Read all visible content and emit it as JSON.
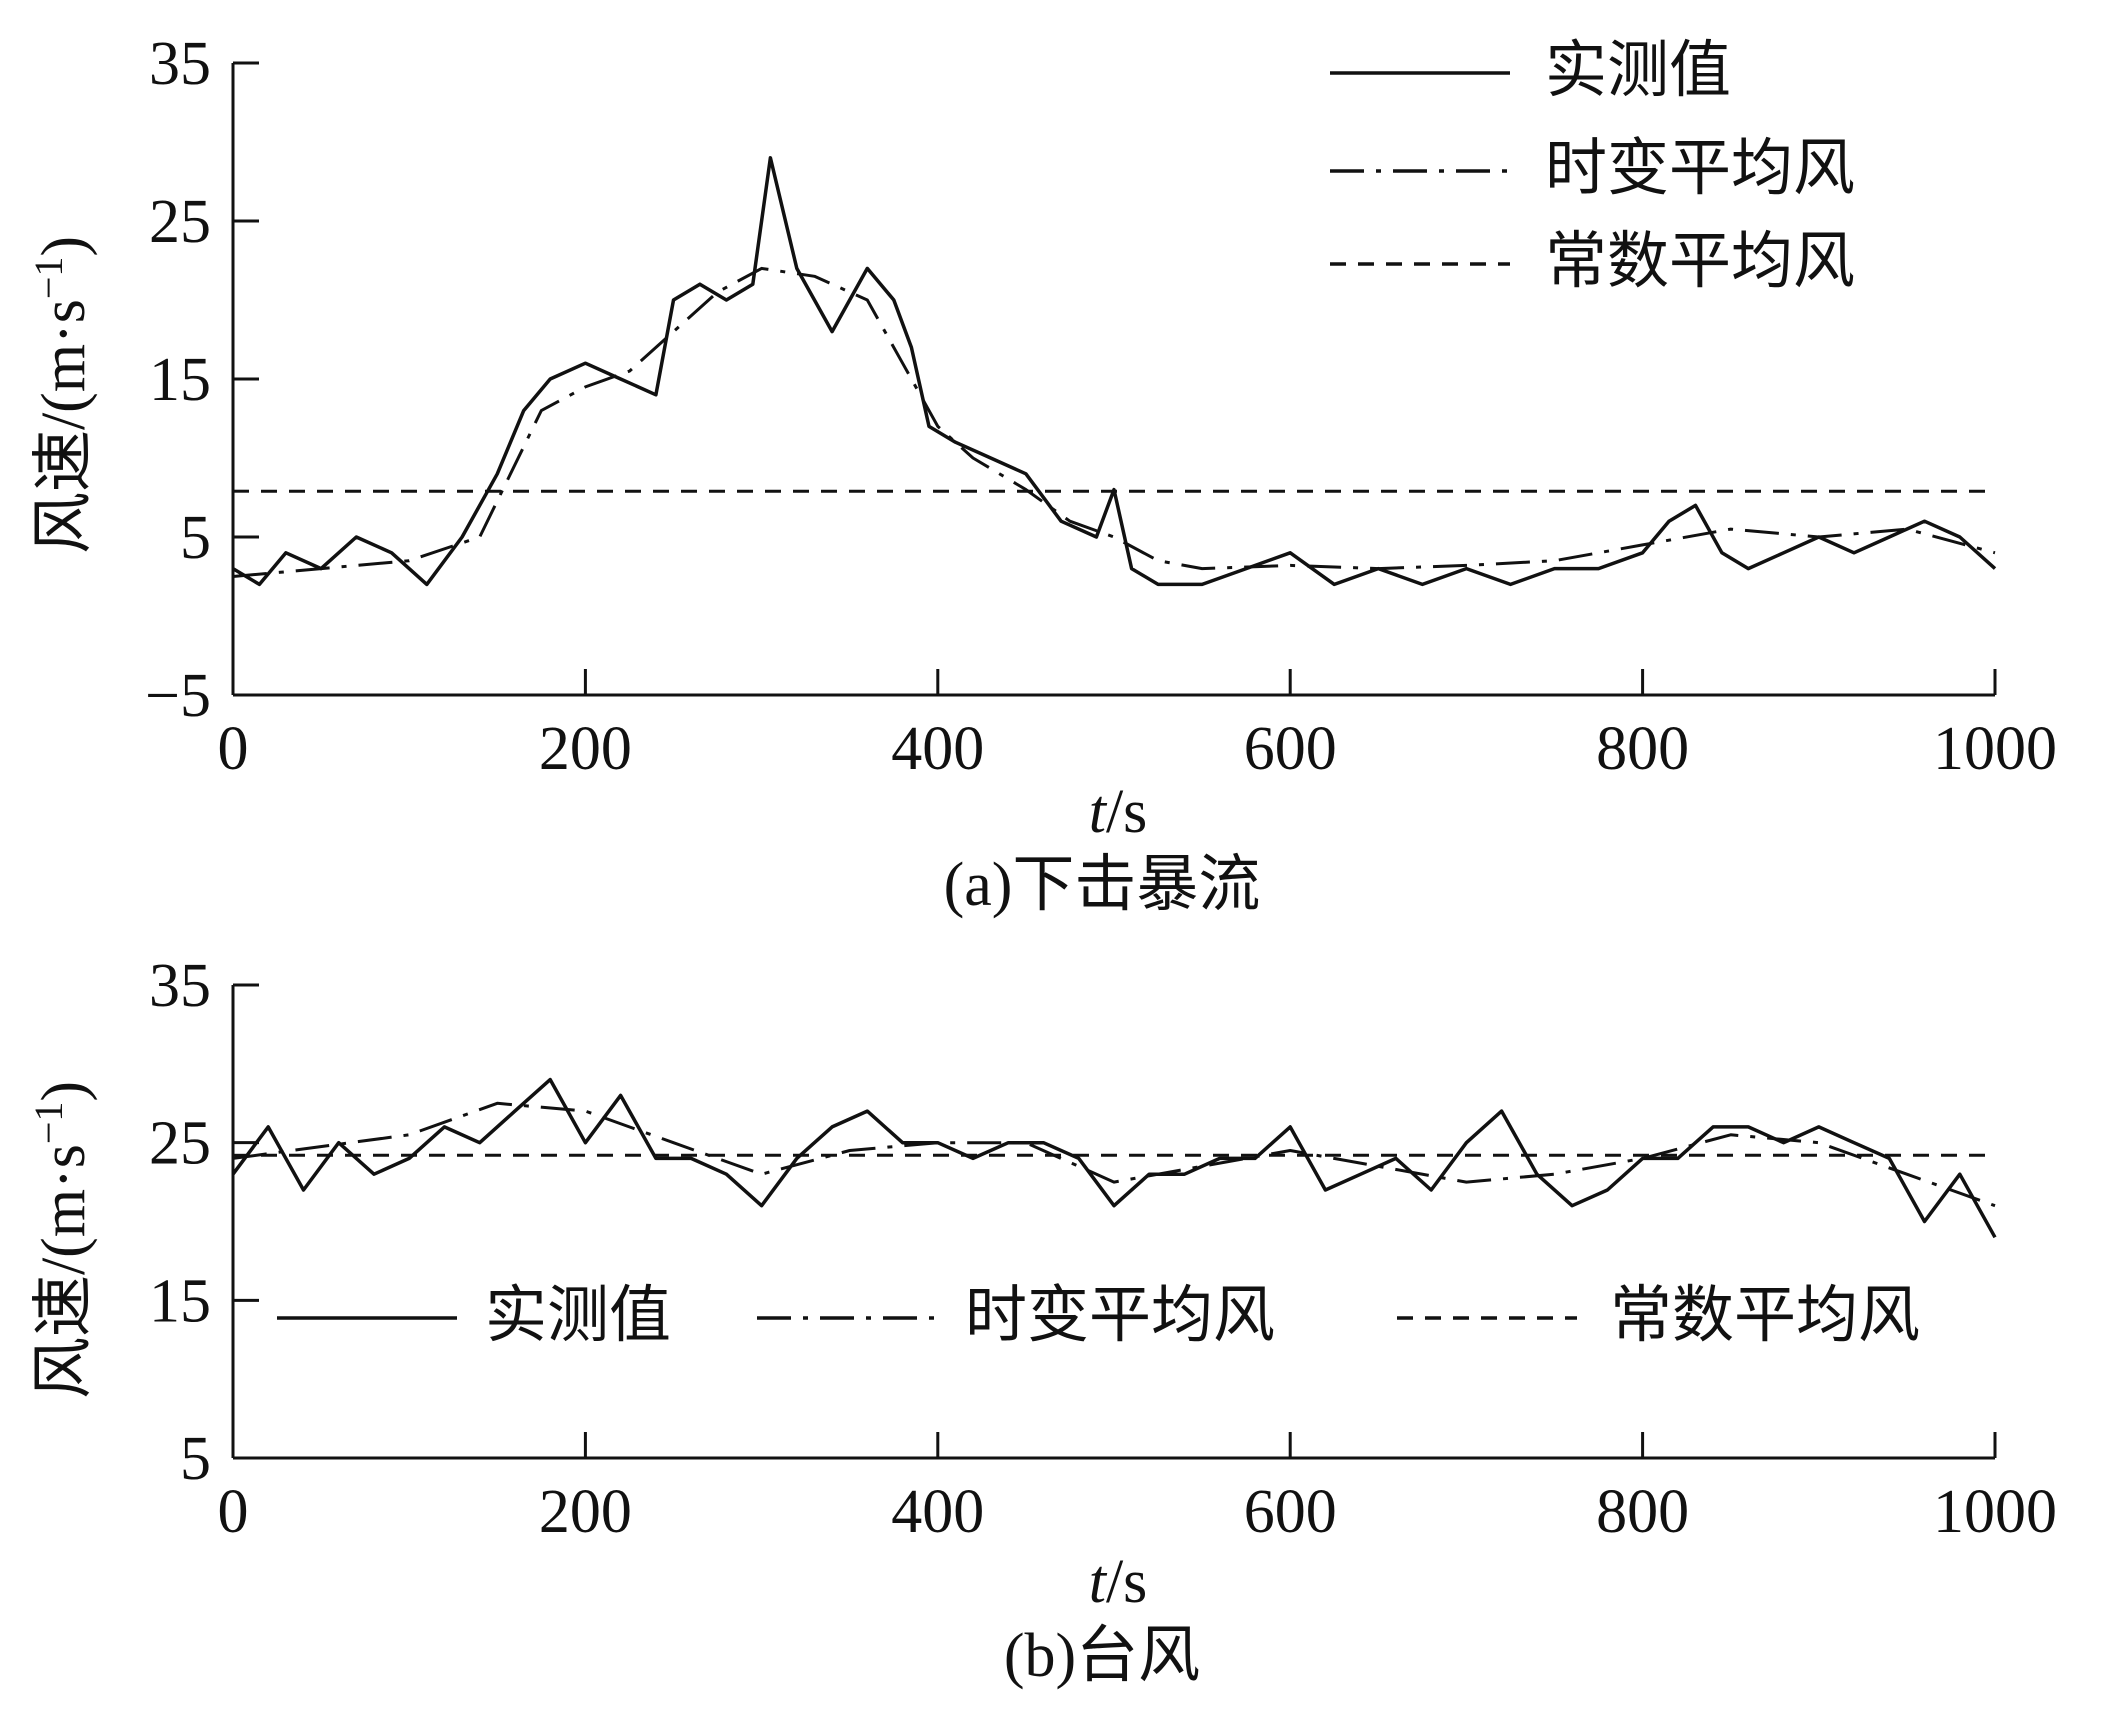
{
  "chart_data": [
    {
      "id": "a",
      "type": "line",
      "caption": "(a)下击暴流",
      "xlabel_italic": "t",
      "xlabel_unit": "/s",
      "ylabel": "风速/(m·s",
      "ylabel_sup": "−1",
      "ylabel_close": ")",
      "xlim": [
        0,
        1000
      ],
      "ylim": [
        -5,
        35
      ],
      "xticks": [
        0,
        200,
        400,
        600,
        800,
        1000
      ],
      "yticks": [
        -5,
        5,
        15,
        25,
        35
      ],
      "ytick_labels": [
        "−5",
        "5",
        "15",
        "25",
        "35"
      ],
      "legend_position": "top-right",
      "series": [
        {
          "name": "实测值",
          "style": "solid",
          "color": "#111111",
          "x": [
            0,
            15,
            30,
            50,
            70,
            90,
            110,
            130,
            150,
            165,
            180,
            200,
            220,
            240,
            250,
            265,
            280,
            295,
            305,
            320,
            340,
            360,
            375,
            385,
            395,
            410,
            430,
            450,
            470,
            490,
            500,
            510,
            525,
            550,
            575,
            600,
            625,
            650,
            675,
            700,
            725,
            750,
            775,
            800,
            815,
            830,
            845,
            860,
            880,
            900,
            920,
            940,
            960,
            980,
            1000
          ],
          "y": [
            3,
            2,
            4,
            3,
            5,
            4,
            2,
            5,
            9,
            13,
            15,
            16,
            15,
            14,
            20,
            21,
            20,
            21,
            29,
            22,
            18,
            22,
            20,
            17,
            12,
            11,
            10,
            9,
            6,
            5,
            8,
            3,
            2,
            2,
            3,
            4,
            2,
            3,
            2,
            3,
            2,
            3,
            3,
            4,
            6,
            7,
            4,
            3,
            4,
            5,
            4,
            5,
            6,
            5,
            3
          ]
        },
        {
          "name": "时变平均风",
          "style": "dashdot",
          "color": "#111111",
          "x": [
            0,
            50,
            100,
            140,
            175,
            200,
            225,
            250,
            275,
            300,
            330,
            360,
            380,
            400,
            420,
            450,
            475,
            500,
            525,
            550,
            600,
            650,
            700,
            750,
            800,
            850,
            900,
            950,
            1000
          ],
          "y": [
            2.5,
            3,
            3.5,
            5,
            13,
            14.5,
            15.5,
            18,
            20.5,
            22,
            21.5,
            20,
            16,
            12,
            10,
            8,
            6,
            5,
            3.5,
            3,
            3.2,
            3,
            3.2,
            3.5,
            4.5,
            5.5,
            5,
            5.5,
            4
          ]
        },
        {
          "name": "常数平均风",
          "style": "dashed",
          "color": "#111111",
          "x": [
            0,
            1000
          ],
          "y": [
            7.9,
            7.9
          ]
        }
      ]
    },
    {
      "id": "b",
      "type": "line",
      "caption": "(b)台风",
      "xlabel_italic": "t",
      "xlabel_unit": "/s",
      "ylabel": "风速/(m·s",
      "ylabel_sup": "−1",
      "ylabel_close": ")",
      "xlim": [
        0,
        1000
      ],
      "ylim": [
        5,
        35
      ],
      "xticks": [
        0,
        200,
        400,
        600,
        800,
        1000
      ],
      "yticks": [
        5,
        15,
        25,
        35
      ],
      "ytick_labels": [
        "5",
        "15",
        "25",
        "35"
      ],
      "legend_position": "bottom (inside plot, horizontal)",
      "series": [
        {
          "name": "实测值",
          "style": "solid",
          "color": "#111111",
          "x": [
            0,
            20,
            40,
            60,
            80,
            100,
            120,
            140,
            160,
            180,
            200,
            220,
            240,
            260,
            280,
            300,
            320,
            340,
            360,
            380,
            400,
            420,
            440,
            460,
            480,
            500,
            520,
            540,
            560,
            580,
            600,
            620,
            640,
            660,
            680,
            700,
            720,
            740,
            760,
            780,
            800,
            820,
            840,
            860,
            880,
            900,
            920,
            940,
            960,
            980,
            1000
          ],
          "y": [
            23,
            26,
            22,
            25,
            23,
            24,
            26,
            25,
            27,
            29,
            25,
            28,
            24,
            24,
            23,
            21,
            24,
            26,
            27,
            25,
            25,
            24,
            25,
            25,
            24,
            21,
            23,
            23,
            24,
            24,
            26,
            22,
            23,
            24,
            22,
            25,
            27,
            23,
            21,
            22,
            24,
            24,
            26,
            26,
            25,
            26,
            25,
            24,
            20,
            23,
            19
          ]
        },
        {
          "name": "时变平均风",
          "style": "dashdot",
          "color": "#111111",
          "x": [
            0,
            100,
            150,
            200,
            250,
            300,
            350,
            400,
            450,
            500,
            550,
            600,
            650,
            700,
            750,
            800,
            850,
            900,
            950,
            1000
          ],
          "y": [
            24,
            25.5,
            27.5,
            27,
            25,
            23,
            24.5,
            25,
            25,
            22.5,
            23.5,
            24.5,
            23.5,
            22.5,
            23,
            24,
            25.5,
            25,
            23,
            21
          ]
        },
        {
          "name": "常数平均风",
          "style": "dashed",
          "color": "#111111",
          "x": [
            0,
            1000
          ],
          "y": [
            24.2,
            24.2
          ]
        }
      ]
    }
  ]
}
